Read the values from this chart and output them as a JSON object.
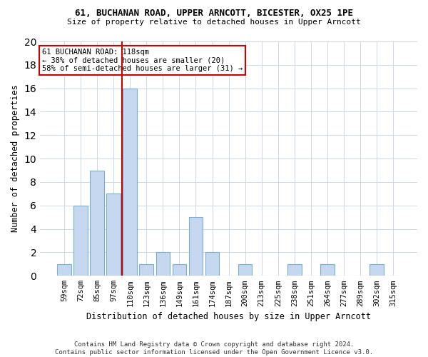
{
  "title": "61, BUCHANAN ROAD, UPPER ARNCOTT, BICESTER, OX25 1PE",
  "subtitle": "Size of property relative to detached houses in Upper Arncott",
  "xlabel": "Distribution of detached houses by size in Upper Arncott",
  "ylabel": "Number of detached properties",
  "bar_color": "#c5d8ef",
  "bar_edge_color": "#7aafd4",
  "categories": [
    "59sqm",
    "72sqm",
    "85sqm",
    "97sqm",
    "110sqm",
    "123sqm",
    "136sqm",
    "149sqm",
    "161sqm",
    "174sqm",
    "187sqm",
    "200sqm",
    "213sqm",
    "225sqm",
    "238sqm",
    "251sqm",
    "264sqm",
    "277sqm",
    "289sqm",
    "302sqm",
    "315sqm"
  ],
  "values": [
    1,
    6,
    9,
    7,
    16,
    1,
    2,
    1,
    5,
    2,
    0,
    1,
    0,
    0,
    1,
    0,
    1,
    0,
    0,
    1,
    0
  ],
  "ylim": [
    0,
    20
  ],
  "yticks": [
    0,
    2,
    4,
    6,
    8,
    10,
    12,
    14,
    16,
    18,
    20
  ],
  "vline_index": 4,
  "vline_color": "#cc0000",
  "annotation_line1": "61 BUCHANAN ROAD: 118sqm",
  "annotation_line2": "← 38% of detached houses are smaller (20)",
  "annotation_line3": "58% of semi-detached houses are larger (31) →",
  "annotation_box_color": "#ffffff",
  "annotation_box_edge": "#cc0000",
  "footer": "Contains HM Land Registry data © Crown copyright and database right 2024.\nContains public sector information licensed under the Open Government Licence v3.0.",
  "background_color": "#ffffff",
  "grid_color": "#cdd8e8"
}
